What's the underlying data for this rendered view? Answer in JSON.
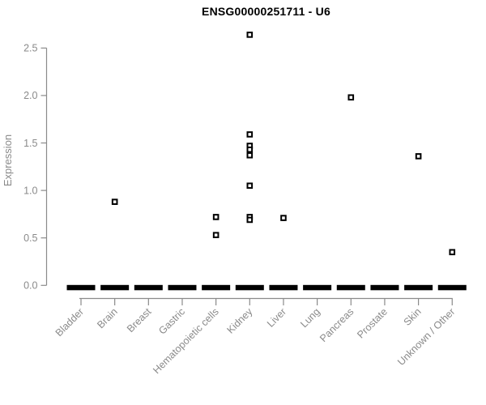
{
  "title": "ENSG00000251711 - U6",
  "colors": {
    "background": "#ffffff",
    "title": "#000000",
    "axis": "#8a8a8a",
    "point": "#000000",
    "point_center": "#ffffff"
  },
  "chart_data": {
    "type": "scatter",
    "subtype": "strip-plot",
    "title": "ENSG00000251711 - U6",
    "xlabel": "",
    "ylabel": "Expression",
    "ylim": [
      0,
      2.5
    ],
    "yticks": [
      0.0,
      0.5,
      1.0,
      1.5,
      2.0,
      2.5
    ],
    "grid": false,
    "legend": false,
    "categories": [
      "Bladder",
      "Brain",
      "Breast",
      "Gastric",
      "Hematopoietic cells",
      "Kidney",
      "Liver",
      "Lung",
      "Pancreas",
      "Prostate",
      "Skin",
      "Unknown / Other"
    ],
    "groups": [
      {
        "category": "Bladder",
        "zero_cluster": true,
        "nonzero_values": []
      },
      {
        "category": "Brain",
        "zero_cluster": true,
        "nonzero_values": [
          0.88
        ]
      },
      {
        "category": "Breast",
        "zero_cluster": true,
        "nonzero_values": []
      },
      {
        "category": "Gastric",
        "zero_cluster": true,
        "nonzero_values": []
      },
      {
        "category": "Hematopoietic cells",
        "zero_cluster": true,
        "nonzero_values": [
          0.72,
          0.53
        ]
      },
      {
        "category": "Kidney",
        "zero_cluster": true,
        "nonzero_values": [
          2.64,
          1.59,
          1.47,
          1.43,
          1.37,
          1.05,
          0.72,
          0.69
        ]
      },
      {
        "category": "Liver",
        "zero_cluster": true,
        "nonzero_values": [
          0.71
        ]
      },
      {
        "category": "Lung",
        "zero_cluster": true,
        "nonzero_values": []
      },
      {
        "category": "Pancreas",
        "zero_cluster": true,
        "nonzero_values": [
          1.98
        ]
      },
      {
        "category": "Prostate",
        "zero_cluster": true,
        "nonzero_values": []
      },
      {
        "category": "Skin",
        "zero_cluster": true,
        "nonzero_values": [
          1.36
        ]
      },
      {
        "category": "Unknown / Other",
        "zero_cluster": true,
        "nonzero_values": [
          0.35
        ]
      }
    ]
  }
}
